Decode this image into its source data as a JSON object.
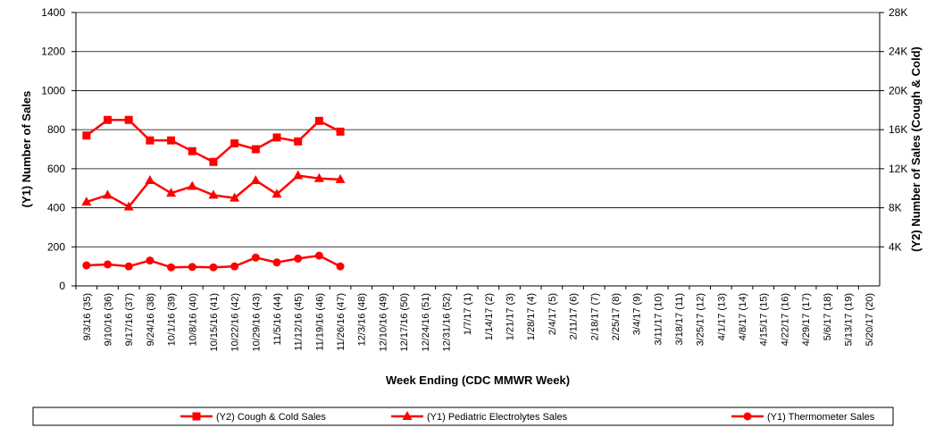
{
  "chart_data": {
    "type": "line",
    "y_label": "(Y1) Number of Sales",
    "y2_label": "(Y2) Number of Sales (Cough & Cold)",
    "x_label": "Week Ending (CDC MMWR Week)",
    "categories": [
      "9/3/16 (35)",
      "9/10/16 (36)",
      "9/17/16 (37)",
      "9/24/16 (38)",
      "10/1/16 (39)",
      "10/8/16 (40)",
      "10/15/16 (41)",
      "10/22/16 (42)",
      "10/29/16 (43)",
      "11/5/16 (44)",
      "11/12/16 (45)",
      "11/19/16 (46)",
      "11/26/16 (47)",
      "12/3/16 (48)",
      "12/10/16 (49)",
      "12/17/16 (50)",
      "12/24/16 (51)",
      "12/31/16 (52)",
      "1/7/17 (1)",
      "1/14/17 (2)",
      "1/21/17 (3)",
      "1/28/17 (4)",
      "2/4/17 (5)",
      "2/11/17 (6)",
      "2/18/17 (7)",
      "2/25/17 (8)",
      "3/4/17 (9)",
      "3/11/17 (10)",
      "3/18/17 (11)",
      "3/25/17 (12)",
      "4/1/17 (13)",
      "4/8/17 (14)",
      "4/15/17 (15)",
      "4/22/17 (16)",
      "4/29/17 (17)",
      "5/6/17 (18)",
      "5/13/17 (19)",
      "5/20/17 (20)"
    ],
    "series": [
      {
        "name": "(Y2) Cough & Cold Sales",
        "color": "#ff0000",
        "marker": "square",
        "axis": "y2",
        "values": [
          15400,
          17000,
          17000,
          14900,
          14900,
          13800,
          12700,
          14600,
          14000,
          15200,
          14800,
          16900,
          15800,
          null,
          null,
          null,
          null,
          null,
          null,
          null,
          null,
          null,
          null,
          null,
          null,
          null,
          null,
          null,
          null,
          null,
          null,
          null,
          null,
          null,
          null,
          null,
          null,
          null
        ]
      },
      {
        "name": "(Y1) Pediatric Electrolytes Sales",
        "color": "#ff0000",
        "marker": "triangle",
        "values": [
          430,
          465,
          405,
          540,
          475,
          510,
          465,
          450,
          540,
          470,
          565,
          550,
          545,
          null,
          null,
          null,
          null,
          null,
          null,
          null,
          null,
          null,
          null,
          null,
          null,
          null,
          null,
          null,
          null,
          null,
          null,
          null,
          null,
          null,
          null,
          null,
          null,
          null
        ]
      },
      {
        "name": "(Y1) Thermometer Sales",
        "color": "#ff0000",
        "marker": "circle",
        "values": [
          105,
          110,
          100,
          130,
          95,
          97,
          95,
          100,
          145,
          120,
          140,
          155,
          100,
          null,
          null,
          null,
          null,
          null,
          null,
          null,
          null,
          null,
          null,
          null,
          null,
          null,
          null,
          null,
          null,
          null,
          null,
          null,
          null,
          null,
          null,
          null,
          null,
          null
        ]
      }
    ],
    "ylim": [
      0,
      1400
    ],
    "yticks": [
      0,
      200,
      400,
      600,
      800,
      1000,
      1200,
      1400
    ],
    "y2lim": [
      0,
      28000
    ],
    "y2ticks": [
      {
        "value": 4000,
        "label": "4K"
      },
      {
        "value": 8000,
        "label": "8K"
      },
      {
        "value": 12000,
        "label": "12K"
      },
      {
        "value": 16000,
        "label": "16K"
      },
      {
        "value": 20000,
        "label": "20K"
      },
      {
        "value": 24000,
        "label": "24K"
      },
      {
        "value": 28000,
        "label": "28K"
      }
    ],
    "grid": true,
    "legend": "bottom"
  }
}
